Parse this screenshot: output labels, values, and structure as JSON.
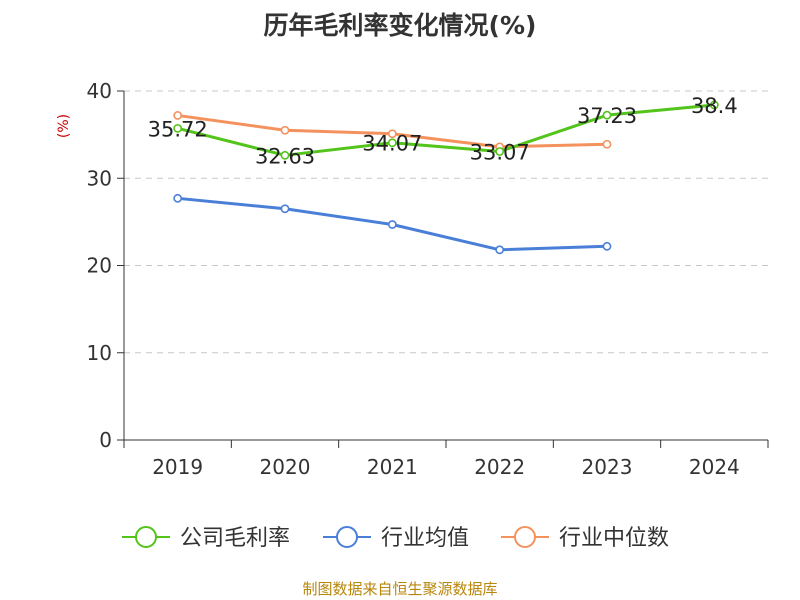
{
  "chart_data": {
    "type": "line",
    "title": "历年毛利率变化情况(%)",
    "ylabel": "(%)",
    "xlabel": "",
    "categories": [
      "2019",
      "2020",
      "2021",
      "2022",
      "2023",
      "2024"
    ],
    "ylim": [
      0,
      40
    ],
    "yticks": [
      0,
      10,
      20,
      30,
      40
    ],
    "grid": true,
    "legend_position": "bottom",
    "series": [
      {
        "name": "公司毛利率",
        "color": "#52c41a",
        "values": [
          35.72,
          32.63,
          34.07,
          33.07,
          37.23,
          38.4
        ],
        "labels": [
          "35.72",
          "32.63",
          "34.07",
          "33.07",
          "37.23",
          "38.4"
        ]
      },
      {
        "name": "行业均值",
        "color": "#4a7fd8",
        "values": [
          27.7,
          26.5,
          24.7,
          21.8,
          22.2,
          null
        ]
      },
      {
        "name": "行业中位数",
        "color": "#f4925e",
        "values": [
          37.2,
          35.5,
          35.1,
          33.6,
          33.9,
          null
        ]
      }
    ]
  },
  "source": "制图数据来自恒生聚源数据库"
}
